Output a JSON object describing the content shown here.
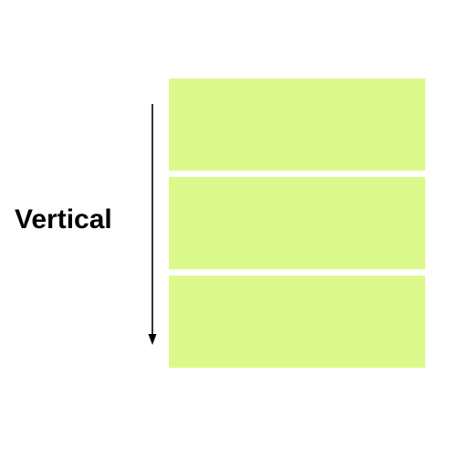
{
  "label": "Vertical",
  "colors": {
    "block_fill": "#dcfa8c",
    "arrow": "#000000",
    "text": "#000000",
    "background": "#ffffff"
  },
  "blocks": [
    {
      "id": "block-1"
    },
    {
      "id": "block-2"
    },
    {
      "id": "block-3"
    }
  ],
  "arrow": {
    "direction": "down",
    "icon": "arrow-down-icon"
  }
}
